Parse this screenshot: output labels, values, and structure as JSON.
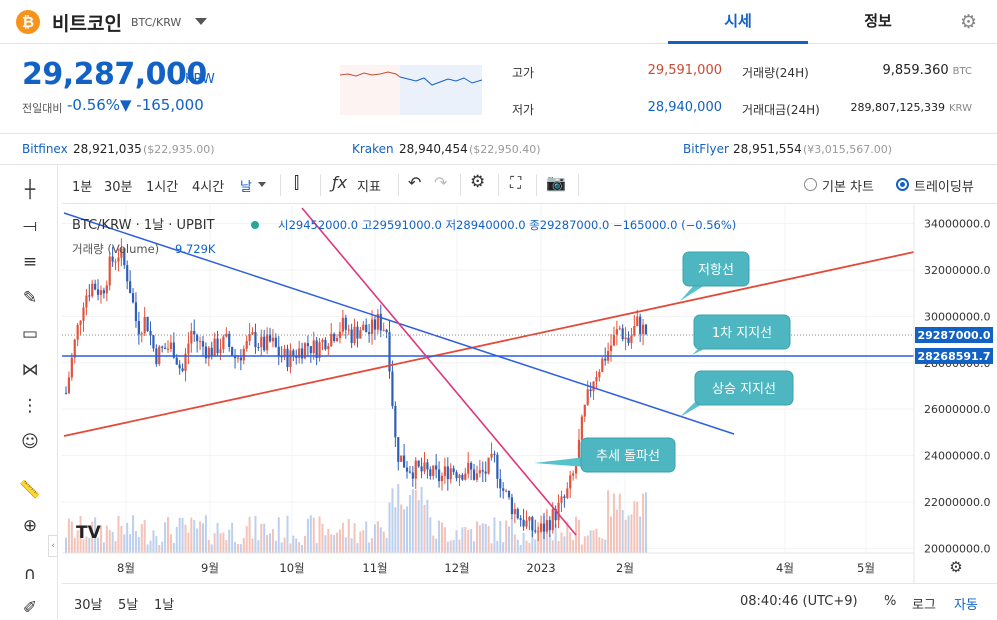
{
  "header": {
    "coin_symbol": "₿",
    "coin_name": "비트코인",
    "pair": "BTC/KRW",
    "tabs": [
      {
        "label": "시세"
      },
      {
        "label": "정보"
      }
    ]
  },
  "price": {
    "current": "29,287,000",
    "unit": "KRW",
    "change_label": "전일대비",
    "change_rate": "-0.56%",
    "change_amount": "▼ -165,000",
    "high_label": "고가",
    "high": "29,591,000",
    "low_label": "저가",
    "low": "28,940,000",
    "volume_label": "거래량(24H)",
    "volume": "9,859.360",
    "volume_unit": "BTC",
    "value_label": "거래대금(24H)",
    "value": "289,807,125,339",
    "value_unit": "KRW"
  },
  "exchanges": [
    {
      "name": "Bitfinex",
      "krw": "28,921,035",
      "usd": "($22,935.00)"
    },
    {
      "name": "Kraken",
      "krw": "28,940,454",
      "usd": "($22,950.40)"
    },
    {
      "name": "BitFlyer",
      "krw": "28,951,554",
      "usd": "(¥3,015,567.00)"
    }
  ],
  "toolbar": {
    "intervals": [
      "1분",
      "30분",
      "1시간",
      "4시간",
      "날"
    ],
    "indicator_label": "지표",
    "basic_chart": "기본 차트",
    "tradingview": "트레이딩뷰"
  },
  "chart_data": {
    "type": "candlestick",
    "legend": {
      "symbol": "BTC/KRW · 1날 · UPBIT",
      "ohlc": "시29452000.0 고29591000.0 저28940000.0 종29287000.0 −165000.0 (−0.56%)",
      "volume": "거래량 (Volume)",
      "volume_value": "9.729K"
    },
    "x_ticks": [
      "8월",
      "9월",
      "10월",
      "11월",
      "12월",
      "2023",
      "2월",
      "4월",
      "5월"
    ],
    "y_ticks": [
      "34000000.0",
      "32000000.0",
      "30000000.0",
      "28000000.0",
      "26000000.0",
      "24000000.0",
      "22000000.0",
      "20000000.0"
    ],
    "ylim": [
      19800000,
      34800000
    ],
    "price_tag_current": "29287000.0",
    "price_tag_line": "28268591.7",
    "annotations": [
      "저항선",
      "1차 지지선",
      "상승 지지선",
      "추세 돌파선"
    ],
    "close_path": [
      26700000,
      28900000,
      30800000,
      31400000,
      31000000,
      32300000,
      32800000,
      31600000,
      29500000,
      29900000,
      28300000,
      28600000,
      28700000,
      27500000,
      29400000,
      28800000,
      28500000,
      28700000,
      28900000,
      28200000,
      28600000,
      29100000,
      28700000,
      28900000,
      28300000,
      28200000,
      28500000,
      28800000,
      28600000,
      29000000,
      29300000,
      29600000,
      29200000,
      29500000,
      29300000,
      29800000,
      29400000,
      24200000,
      23600000,
      23400000,
      23300000,
      23200000,
      23000000,
      23500000,
      23300000,
      23400000,
      23100000,
      23300000,
      23800000,
      22500000,
      21800000,
      21300000,
      20900000,
      20700000,
      21100000,
      21600000,
      22200000,
      23300000,
      25700000,
      27300000,
      28000000,
      28700000,
      29500000,
      28900000,
      29700000,
      29300000
    ]
  },
  "bottom": {
    "ranges": [
      "30날",
      "5날",
      "1날"
    ],
    "time": "08:40:46 (UTC+9)",
    "pct": "%",
    "log": "로그",
    "auto": "자동"
  }
}
